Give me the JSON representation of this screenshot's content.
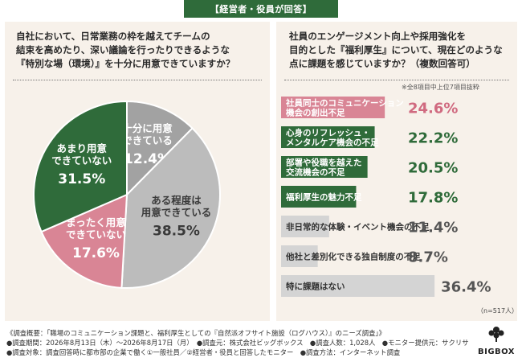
{
  "header": {
    "tag": "【経営者・役員が回答】"
  },
  "left": {
    "question_lines": [
      "自社において、日常業務の枠を越えてチームの",
      "結束を高めたり、深い議論を行ったりできるような",
      "『特別な場（環境）』を十分に用意できていますか？"
    ]
  },
  "right": {
    "question_lines": [
      "社員のエンゲージメント向上や採用強化を",
      "目的とした『福利厚生』について、現在どのような",
      "点に課題を感じていますか？（複数回答可）"
    ],
    "note": "※全8項目中上位7項目抜粋",
    "n": "（n=517人）"
  },
  "footer": {
    "lines": [
      "《調査概要：「職場のコミュニケーション課題と、福利厚生としての『自然派オフサイト施設（ログハウス）』のニーズ調査」》",
      "●調査期間：2026年8月13日（木）〜2026年8月17日（月）　●調査元：株式会社ビッグボックス　●調査人数：1,028人　●モニター提供元：サクリサ",
      "●調査対象：調査回答時に都市部の企業で働く①一般社員／②経営者・役員と回答したモニター　●調査方法：インターネット調査"
    ],
    "logo": "BIGBOX"
  },
  "chart_data": [
    {
      "type": "pie",
      "title": "",
      "slices": [
        {
          "label_lines": [
            "十分に用意",
            "できている"
          ],
          "value": 12.4,
          "value_text": "12.4%",
          "color": "#a2a2a2",
          "text_color": "#ffffff"
        },
        {
          "label_lines": [
            "ある程度は",
            "用意できている"
          ],
          "value": 38.5,
          "value_text": "38.5%",
          "color": "#bcbcbc",
          "text_color": "#3a3a3a"
        },
        {
          "label_lines": [
            "まったく用意",
            "できていない"
          ],
          "value": 17.6,
          "value_text": "17.6%",
          "color": "#d98595",
          "text_color": "#ffffff"
        },
        {
          "label_lines": [
            "あまり用意",
            "できていない"
          ],
          "value": 31.5,
          "value_text": "31.5%",
          "color": "#2f6b3a",
          "text_color": "#ffffff"
        }
      ]
    },
    {
      "type": "bar",
      "orientation": "horizontal",
      "title": "",
      "xlim": [
        0,
        40
      ],
      "bars": [
        {
          "label_lines": [
            "社員同士のコミュニケーション",
            "機会の創出不足"
          ],
          "value": 24.6,
          "value_text": "24.6%",
          "color": "#d98595",
          "label_color": "#ffffff",
          "value_color": "#d06a80"
        },
        {
          "label_lines": [
            "心身のリフレッシュ・",
            "メンタルケア機会の不足"
          ],
          "value": 22.2,
          "value_text": "22.2%",
          "color": "#2f6b3a",
          "label_color": "#ffffff",
          "value_color": "#2f6b3a"
        },
        {
          "label_lines": [
            "部署や役職を越えた",
            "交流機会の不足"
          ],
          "value": 20.5,
          "value_text": "20.5%",
          "color": "#2f6b3a",
          "label_color": "#ffffff",
          "value_color": "#2f6b3a"
        },
        {
          "label_lines": [
            "福利厚生の魅力不足"
          ],
          "value": 17.8,
          "value_text": "17.8%",
          "color": "#2f6b3a",
          "label_color": "#ffffff",
          "value_color": "#2f6b3a"
        },
        {
          "label_lines": [
            "非日常的な体験・イベント機会の不足"
          ],
          "value": 11.4,
          "value_text": "11.4%",
          "color": "#d4d4d4",
          "label_color": "#333333",
          "value_color": "#555555"
        },
        {
          "label_lines": [
            "他社と差別化できる独自制度の不足"
          ],
          "value": 8.7,
          "value_text": "8.7%",
          "color": "#d4d4d4",
          "label_color": "#333333",
          "value_color": "#555555"
        },
        {
          "label_lines": [
            "特に課題はない"
          ],
          "value": 36.4,
          "value_text": "36.4%",
          "color": "#d4d4d4",
          "label_color": "#333333",
          "value_color": "#555555"
        }
      ]
    }
  ]
}
